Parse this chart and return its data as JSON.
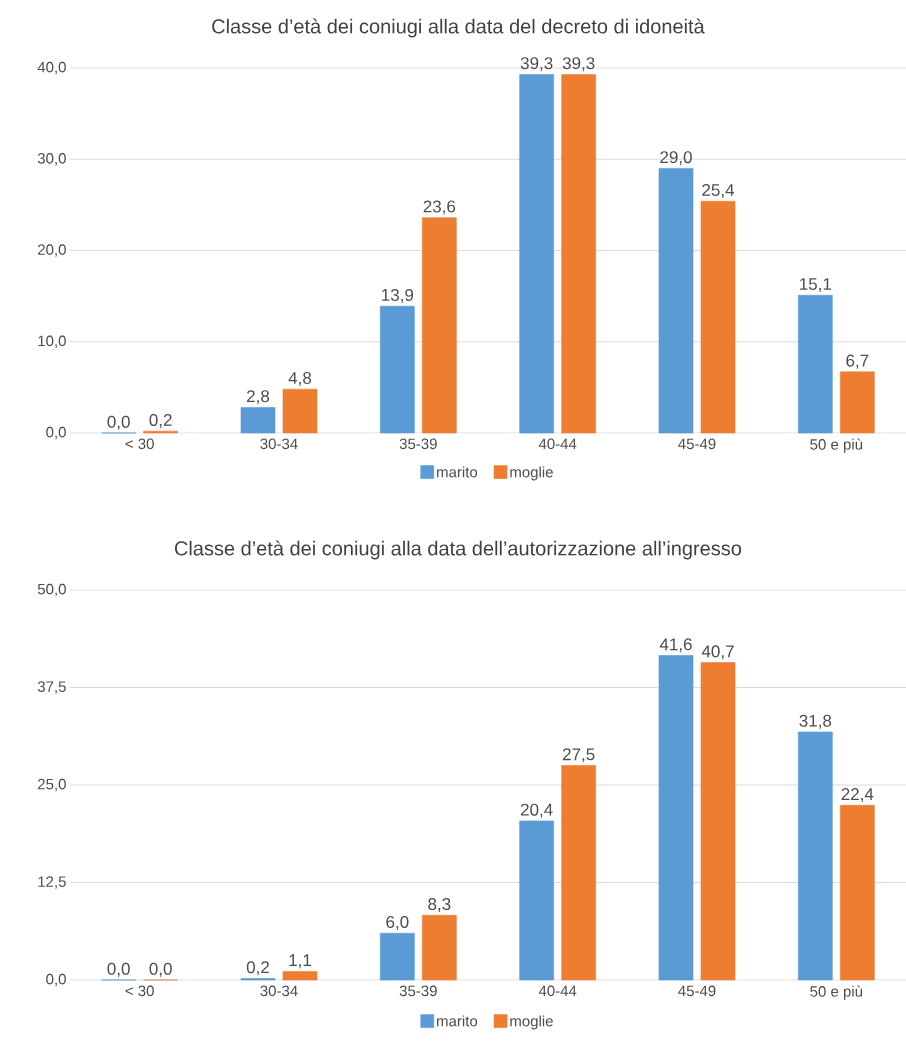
{
  "chart_data": [
    {
      "type": "bar",
      "title": "Classe d’età dei coniugi alla data del decreto di idoneità",
      "categories": [
        "< 30",
        "30-34",
        "35-39",
        "40-44",
        "45-49",
        "50 e più"
      ],
      "series": [
        {
          "name": "marito",
          "color": "#5b9bd5",
          "values": [
            0.0,
            2.8,
            13.9,
            39.3,
            29.0,
            15.1
          ],
          "value_labels": [
            "0,0",
            "2,8",
            "13,9",
            "39,3",
            "29,0",
            "15,1"
          ]
        },
        {
          "name": "moglie",
          "color": "#ed7d31",
          "values": [
            0.2,
            4.8,
            23.6,
            39.3,
            25.4,
            6.7
          ],
          "value_labels": [
            "0,2",
            "4,8",
            "23,6",
            "39,3",
            "25,4",
            "6,7"
          ]
        }
      ],
      "ylim": [
        0,
        40
      ],
      "yticks": [
        {
          "value": 0,
          "label": "0,0"
        },
        {
          "value": 10,
          "label": "10,0"
        },
        {
          "value": 20,
          "label": "20,0"
        },
        {
          "value": 30,
          "label": "30,0"
        },
        {
          "value": 40,
          "label": "40,0"
        }
      ],
      "grid": "y",
      "legend": "bottom"
    },
    {
      "type": "bar",
      "title": "Classe d’età dei coniugi alla data dell’autorizzazione all’ingresso",
      "categories": [
        "< 30",
        "30-34",
        "35-39",
        "40-44",
        "45-49",
        "50 e più"
      ],
      "series": [
        {
          "name": "marito",
          "color": "#5b9bd5",
          "values": [
            0.0,
            0.2,
            6.0,
            20.4,
            41.6,
            31.8
          ],
          "value_labels": [
            "0,0",
            "0,2",
            "6,0",
            "20,4",
            "41,6",
            "31,8"
          ]
        },
        {
          "name": "moglie",
          "color": "#ed7d31",
          "values": [
            0.0,
            1.1,
            8.3,
            27.5,
            40.7,
            22.4
          ],
          "value_labels": [
            "0,0",
            "1,1",
            "8,3",
            "27,5",
            "40,7",
            "22,4"
          ]
        }
      ],
      "ylim": [
        0,
        50
      ],
      "yticks": [
        {
          "value": 0,
          "label": "0,0"
        },
        {
          "value": 12.5,
          "label": "12,5"
        },
        {
          "value": 25,
          "label": "25,0"
        },
        {
          "value": 37.5,
          "label": "37,5"
        },
        {
          "value": 50,
          "label": "50,0"
        }
      ],
      "grid": "y",
      "legend": "bottom"
    }
  ]
}
